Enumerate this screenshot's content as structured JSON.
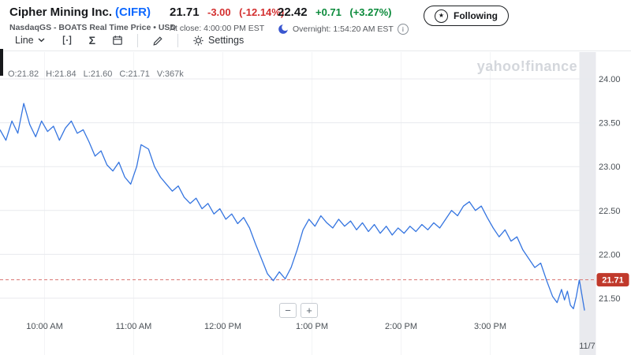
{
  "header": {
    "company": "Cipher Mining Inc.",
    "ticker": "(CIFR)",
    "exchange_line": "NasdaqGS - BOATS Real Time Price • USD",
    "close": {
      "price": "21.71",
      "change": "-3.00",
      "change_pct": "(-12.14%)",
      "label": "At close: 4:00:00 PM EST"
    },
    "overnight": {
      "price": "22.42",
      "change": "+0.71",
      "change_pct": "(+3.27%)",
      "label": "Overnight: 1:54:20 AM EST"
    },
    "follow_button": "Following"
  },
  "toolbar": {
    "chart_type": "Line",
    "settings": "Settings"
  },
  "chart": {
    "ohlc": {
      "open": "O:21.82",
      "high": "H:21.84",
      "low": "L:21.60",
      "close": "C:21.71",
      "volume": "V:367k"
    },
    "watermark": "yahoo!finance",
    "price_badge": "21.71",
    "date_label": "11/7",
    "zoom_out": "−",
    "zoom_in": "+"
  },
  "icons": {
    "star": "★",
    "sigma": "Σ",
    "info": "i"
  },
  "colors": {
    "down": "#d32f2f",
    "up": "#0a8a3a",
    "ticker_blue": "#0f69ff",
    "line_blue": "#3575e0",
    "grid": "#e8eaee",
    "vgrid": "#f3f4f6",
    "axis_text": "#4a5056",
    "watermark": "#d4d7dc",
    "band": "#e9eaee",
    "badge": "#c0392b",
    "dashed": "#da7672"
  },
  "chart_data": {
    "type": "line",
    "x_unit": "minutes since 09:30 AM EST",
    "session_end_min": 390,
    "current_price": 21.71,
    "ylim": [
      21.3,
      24.3
    ],
    "yticks": [
      24.0,
      23.5,
      23.0,
      22.5,
      22.0,
      21.5
    ],
    "xticks": [
      {
        "m": 30,
        "label": "10:00 AM"
      },
      {
        "m": 90,
        "label": "11:00 AM"
      },
      {
        "m": 150,
        "label": "12:00 PM"
      },
      {
        "m": 210,
        "label": "1:00 PM"
      },
      {
        "m": 270,
        "label": "2:00 PM"
      },
      {
        "m": 330,
        "label": "3:00 PM"
      }
    ],
    "points": [
      [
        0,
        23.42
      ],
      [
        4,
        23.3
      ],
      [
        8,
        23.52
      ],
      [
        12,
        23.38
      ],
      [
        16,
        23.72
      ],
      [
        20,
        23.48
      ],
      [
        24,
        23.34
      ],
      [
        28,
        23.52
      ],
      [
        32,
        23.4
      ],
      [
        36,
        23.46
      ],
      [
        40,
        23.3
      ],
      [
        44,
        23.44
      ],
      [
        48,
        23.52
      ],
      [
        52,
        23.38
      ],
      [
        56,
        23.42
      ],
      [
        60,
        23.28
      ],
      [
        64,
        23.12
      ],
      [
        68,
        23.18
      ],
      [
        72,
        23.02
      ],
      [
        76,
        22.95
      ],
      [
        80,
        23.05
      ],
      [
        84,
        22.88
      ],
      [
        88,
        22.8
      ],
      [
        92,
        23.0
      ],
      [
        95,
        23.25
      ],
      [
        100,
        23.2
      ],
      [
        104,
        23.0
      ],
      [
        108,
        22.88
      ],
      [
        112,
        22.8
      ],
      [
        116,
        22.72
      ],
      [
        120,
        22.78
      ],
      [
        124,
        22.65
      ],
      [
        128,
        22.58
      ],
      [
        132,
        22.64
      ],
      [
        136,
        22.52
      ],
      [
        140,
        22.58
      ],
      [
        144,
        22.46
      ],
      [
        148,
        22.52
      ],
      [
        152,
        22.4
      ],
      [
        156,
        22.46
      ],
      [
        160,
        22.35
      ],
      [
        164,
        22.42
      ],
      [
        168,
        22.3
      ],
      [
        172,
        22.12
      ],
      [
        176,
        21.95
      ],
      [
        180,
        21.78
      ],
      [
        184,
        21.7
      ],
      [
        188,
        21.8
      ],
      [
        192,
        21.72
      ],
      [
        196,
        21.85
      ],
      [
        200,
        22.05
      ],
      [
        204,
        22.28
      ],
      [
        208,
        22.4
      ],
      [
        212,
        22.32
      ],
      [
        216,
        22.44
      ],
      [
        220,
        22.36
      ],
      [
        224,
        22.3
      ],
      [
        228,
        22.4
      ],
      [
        232,
        22.32
      ],
      [
        236,
        22.38
      ],
      [
        240,
        22.28
      ],
      [
        244,
        22.36
      ],
      [
        248,
        22.26
      ],
      [
        252,
        22.34
      ],
      [
        256,
        22.24
      ],
      [
        260,
        22.32
      ],
      [
        264,
        22.22
      ],
      [
        268,
        22.3
      ],
      [
        272,
        22.24
      ],
      [
        276,
        22.32
      ],
      [
        280,
        22.26
      ],
      [
        284,
        22.34
      ],
      [
        288,
        22.28
      ],
      [
        292,
        22.36
      ],
      [
        296,
        22.3
      ],
      [
        300,
        22.4
      ],
      [
        304,
        22.5
      ],
      [
        308,
        22.44
      ],
      [
        312,
        22.55
      ],
      [
        316,
        22.6
      ],
      [
        320,
        22.5
      ],
      [
        324,
        22.55
      ],
      [
        328,
        22.42
      ],
      [
        332,
        22.3
      ],
      [
        336,
        22.2
      ],
      [
        340,
        22.28
      ],
      [
        344,
        22.15
      ],
      [
        348,
        22.2
      ],
      [
        352,
        22.05
      ],
      [
        356,
        21.95
      ],
      [
        360,
        21.85
      ],
      [
        364,
        21.9
      ],
      [
        368,
        21.7
      ],
      [
        372,
        21.52
      ],
      [
        375,
        21.45
      ],
      [
        378,
        21.6
      ],
      [
        380,
        21.48
      ],
      [
        382,
        21.58
      ],
      [
        384,
        21.42
      ],
      [
        386,
        21.38
      ],
      [
        388,
        21.52
      ],
      [
        390,
        21.71
      ]
    ],
    "afterhours_points": [
      [
        390,
        21.71
      ],
      [
        393.5,
        21.36
      ]
    ]
  }
}
